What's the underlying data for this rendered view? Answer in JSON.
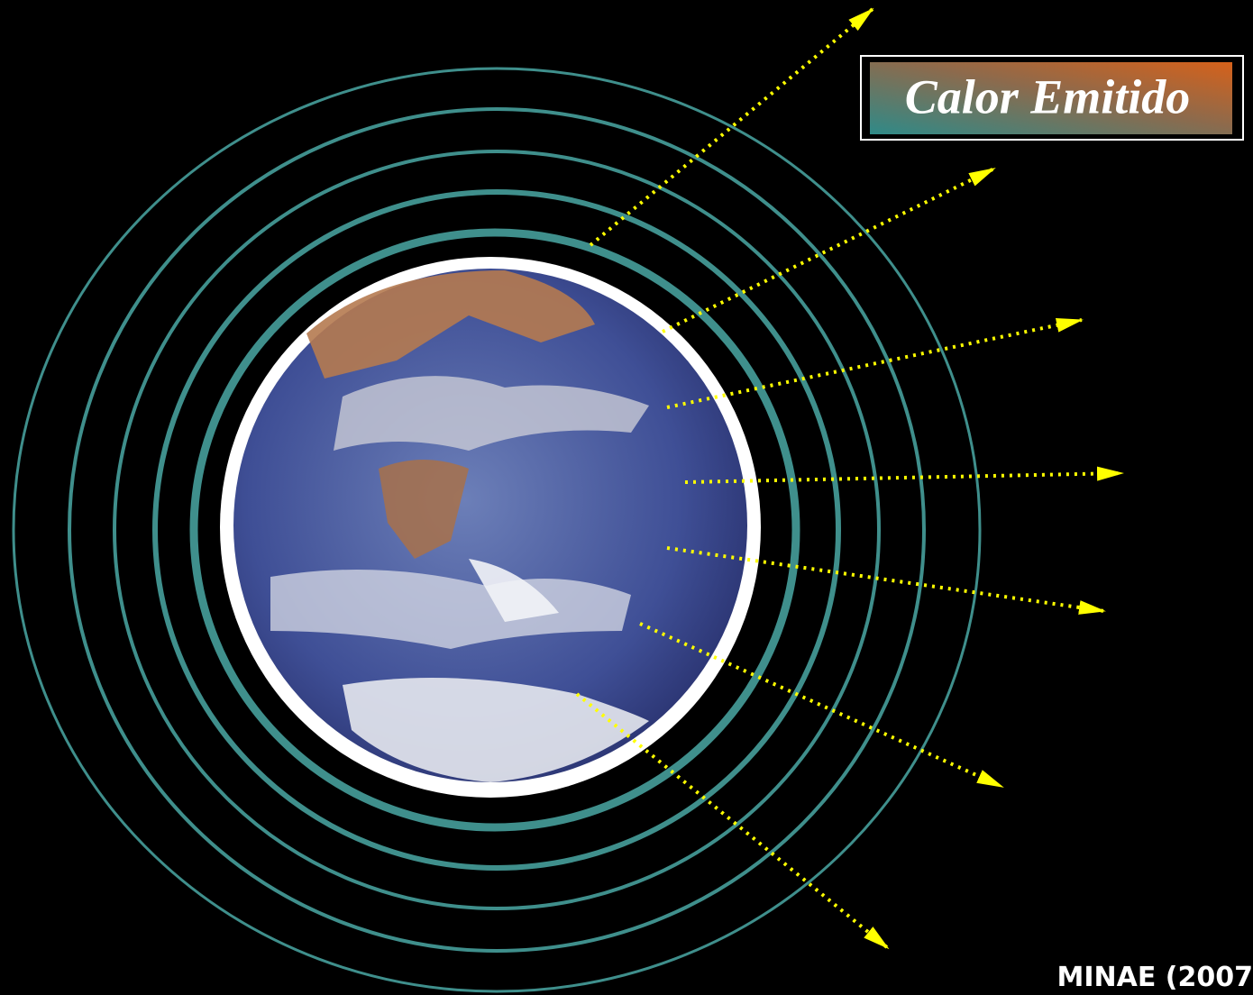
{
  "label": "Calor Emitido",
  "credit": "MINAE (2007"
}
